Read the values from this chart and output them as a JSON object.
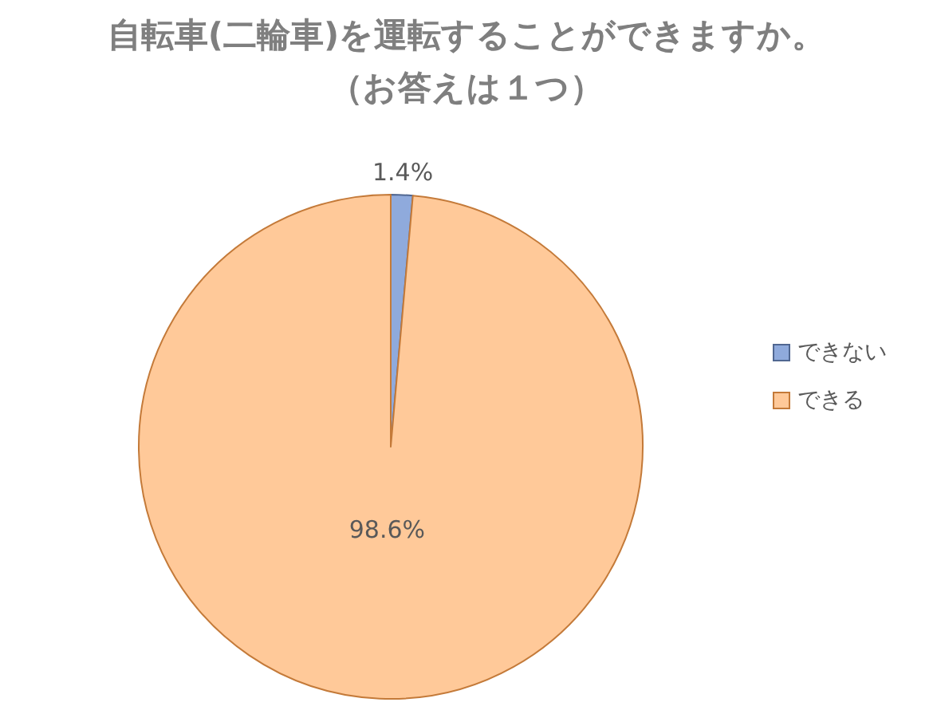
{
  "chart_data": {
    "type": "pie",
    "title": "自転車(二輪車)を運転することができますか。",
    "subtitle": "（お答えは１つ）",
    "categories": [
      "できない",
      "できる"
    ],
    "values": [
      1.4,
      98.6
    ],
    "colors": [
      "#8faadc",
      "#ffc999"
    ],
    "value_labels": [
      "1.4%",
      "98.6%"
    ],
    "legend": "right"
  }
}
